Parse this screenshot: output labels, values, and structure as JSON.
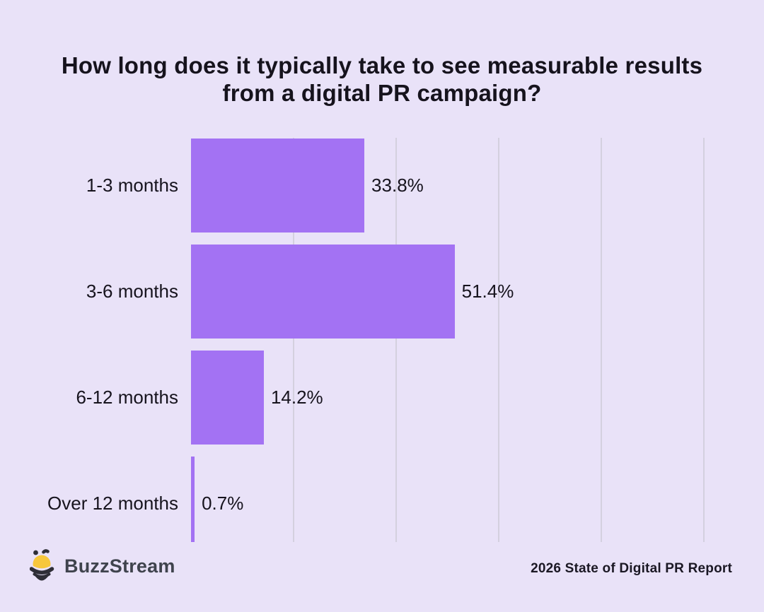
{
  "title": "How long does it typically take to see measurable results from a digital PR campaign?",
  "chart_data": {
    "type": "bar",
    "orientation": "horizontal",
    "title": "How long does it typically take to see measurable results from a digital PR campaign?",
    "categories": [
      "1-3 months",
      "3-6 months",
      "6-12 months",
      "Over 12 months"
    ],
    "values": [
      33.8,
      51.4,
      14.2,
      0.7
    ],
    "value_labels": [
      "33.8%",
      "51.4%",
      "14.2%",
      "0.7%"
    ],
    "xlabel": "",
    "ylabel": "",
    "xlim": [
      0,
      100
    ],
    "gridlines_pct": [
      20,
      40,
      60,
      80,
      100
    ],
    "grid": "vertical-only",
    "legend": "none",
    "bar_color": "#a372f3",
    "background_color": "#e9e2f8",
    "gridline_color": "#d4d0df",
    "text_color": "#16131d"
  },
  "footer": {
    "brand_name": "BuzzStream",
    "brand_icon": "buzzstream-bee-icon",
    "bee_yellow": "#f7c73c",
    "bee_dark": "#2e2e36",
    "report_credit": "2026 State of Digital PR Report"
  }
}
